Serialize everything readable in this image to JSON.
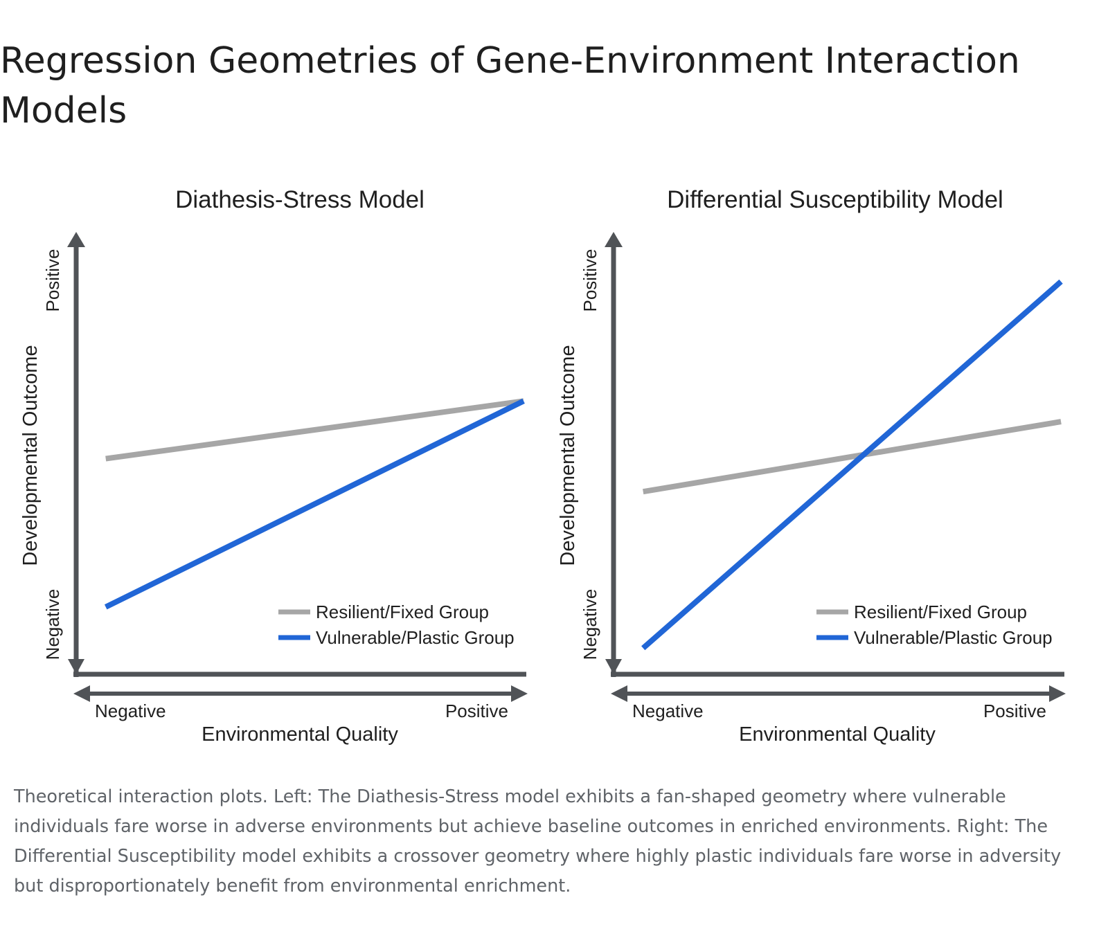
{
  "page": {
    "title": "Regression Geometries of Gene-Environment Interaction Models",
    "caption": "Theoretical interaction plots. Left: The Diathesis-Stress model exhibits a fan-shaped geometry where vulnerable individuals fare worse in adverse environments but achieve baseline outcomes in enriched environments. Right: The Differential Susceptibility model exhibits a crossover geometry where highly plastic individuals fare worse in adversity but disproportionately benefit from environmental enrichment."
  },
  "colors": {
    "axis": "#505357",
    "resilient": "#a6a6a6",
    "vulnerable": "#2166d6"
  },
  "chart_data": [
    {
      "type": "line",
      "title": "Diathesis-Stress Model",
      "xlabel": "Environmental Quality",
      "ylabel": "Developmental Outcome",
      "x_tick_labels": [
        "Negative",
        "Positive"
      ],
      "y_tick_labels": [
        "Negative",
        "Positive"
      ],
      "xlim": [
        0,
        1
      ],
      "ylim": [
        0,
        1
      ],
      "grid": false,
      "legend_position": "bottom-right",
      "series": [
        {
          "name": "Resilient/Fixed Group",
          "color": "#a6a6a6",
          "x": [
            0.06,
            0.95
          ],
          "y": [
            0.52,
            0.66
          ]
        },
        {
          "name": "Vulnerable/Plastic Group",
          "color": "#2166d6",
          "x": [
            0.06,
            0.95
          ],
          "y": [
            0.16,
            0.66
          ]
        }
      ]
    },
    {
      "type": "line",
      "title": "Differential Susceptibility Model",
      "xlabel": "Environmental Quality",
      "ylabel": "Developmental Outcome",
      "x_tick_labels": [
        "Negative",
        "Positive"
      ],
      "y_tick_labels": [
        "Negative",
        "Positive"
      ],
      "xlim": [
        0,
        1
      ],
      "ylim": [
        0,
        1
      ],
      "grid": false,
      "legend_position": "bottom-right",
      "series": [
        {
          "name": "Resilient/Fixed Group",
          "color": "#a6a6a6",
          "x": [
            0.06,
            0.95
          ],
          "y": [
            0.44,
            0.61
          ]
        },
        {
          "name": "Vulnerable/Plastic Group",
          "color": "#2166d6",
          "x": [
            0.06,
            0.95
          ],
          "y": [
            0.06,
            0.95
          ]
        }
      ]
    }
  ]
}
